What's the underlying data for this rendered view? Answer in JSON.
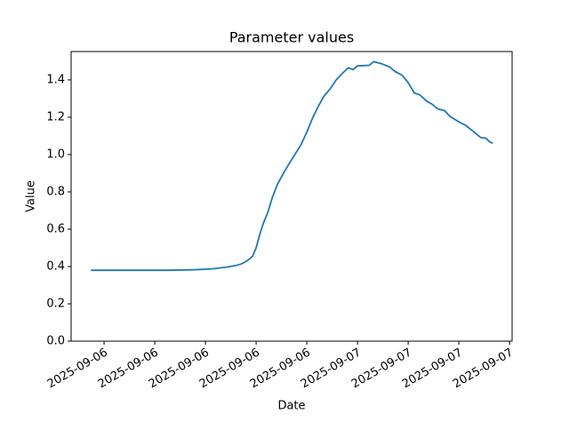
{
  "chart_data": {
    "type": "line",
    "title": "Parameter values",
    "xlabel": "Date",
    "ylabel": "Value",
    "x": [
      -0.26,
      0.23,
      0.75,
      1.28,
      1.81,
      2.16,
      2.42,
      2.6,
      2.72,
      2.82,
      2.93,
      3.0,
      3.07,
      3.14,
      3.23,
      3.32,
      3.42,
      3.56,
      3.74,
      3.88,
      4.0,
      4.12,
      4.23,
      4.33,
      4.47,
      4.58,
      4.7,
      4.82,
      4.91,
      5.0,
      5.23,
      5.32,
      5.46,
      5.63,
      5.74,
      5.88,
      6.0,
      6.12,
      6.23,
      6.37,
      6.47,
      6.58,
      6.72,
      6.82,
      7.0,
      7.14,
      7.28,
      7.39,
      7.44,
      7.53,
      7.6,
      7.67
    ],
    "series": [
      {
        "color": "#1f77b4",
        "values": [
          0.38,
          0.38,
          0.38,
          0.38,
          0.383,
          0.388,
          0.397,
          0.405,
          0.415,
          0.43,
          0.455,
          0.5,
          0.57,
          0.63,
          0.69,
          0.77,
          0.84,
          0.91,
          0.99,
          1.05,
          1.12,
          1.2,
          1.26,
          1.31,
          1.355,
          1.4,
          1.435,
          1.465,
          1.455,
          1.475,
          1.478,
          1.498,
          1.488,
          1.47,
          1.445,
          1.425,
          1.385,
          1.33,
          1.32,
          1.285,
          1.27,
          1.245,
          1.235,
          1.205,
          1.175,
          1.155,
          1.125,
          1.1,
          1.09,
          1.088,
          1.07,
          1.06
        ]
      }
    ],
    "xlim": [
      -0.65,
      8.05
    ],
    "xticks": [
      {
        "value": 0,
        "label": "2025-09-06"
      },
      {
        "value": 1,
        "label": "2025-09-06"
      },
      {
        "value": 2,
        "label": "2025-09-06"
      },
      {
        "value": 3,
        "label": "2025-09-06"
      },
      {
        "value": 4,
        "label": "2025-09-06"
      },
      {
        "value": 5,
        "label": "2025-09-07"
      },
      {
        "value": 6,
        "label": "2025-09-07"
      },
      {
        "value": 7,
        "label": "2025-09-07"
      },
      {
        "value": 8,
        "label": "2025-09-07"
      }
    ],
    "ylim": [
      0,
      1.552
    ],
    "yticks": [
      {
        "value": 0,
        "label": "0.0"
      },
      0.2,
      0.4,
      0.6,
      0.8,
      {
        "value": 1,
        "label": "1.0"
      },
      1.2,
      1.4
    ]
  }
}
